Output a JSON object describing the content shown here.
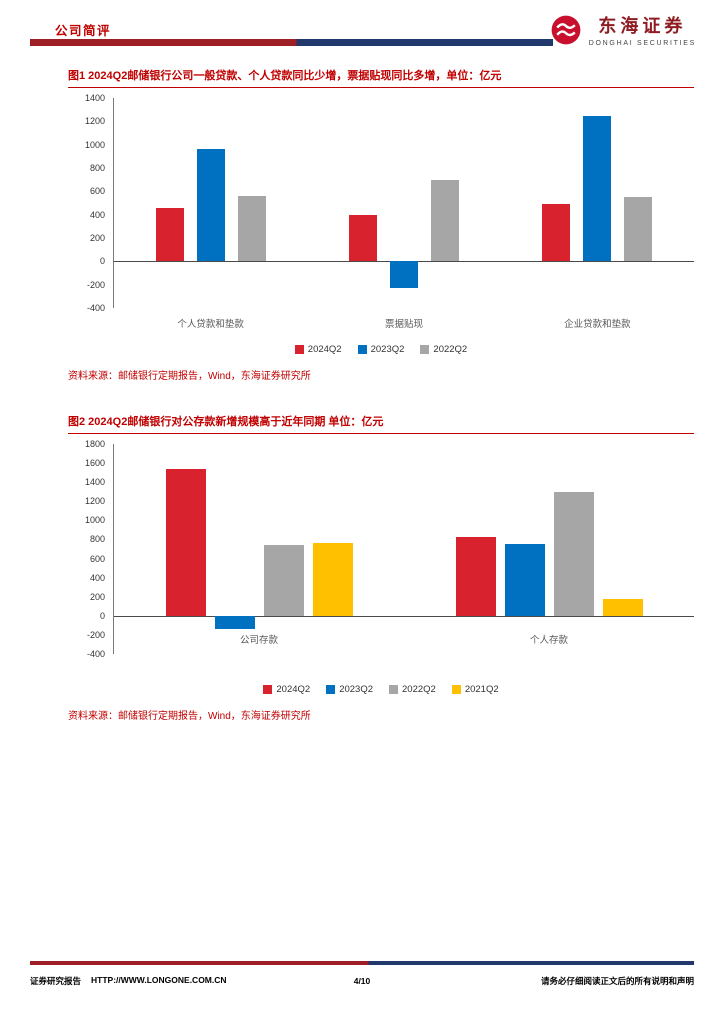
{
  "header": {
    "doc_type": "公司简评",
    "logo_cn": "东海证券",
    "logo_en": "DONGHAI SECURITIES"
  },
  "figures": [
    {
      "title": "图1  2024Q2邮储银行公司一般贷款、个人贷款同比少增，票据贴现同比多增，单位：亿元",
      "source": "资料来源：邮储银行定期报告，Wind，东海证券研究所"
    },
    {
      "title": "图2  2024Q2邮储银行对公存款新增规模高于近年同期 单位：亿元",
      "source": "资料来源：邮储银行定期报告，Wind，东海证券研究所"
    }
  ],
  "chart_data": [
    {
      "type": "bar",
      "title": "2024Q2邮储银行公司一般贷款、个人贷款同比少增，票据贴现同比多增",
      "unit": "亿元",
      "categories": [
        "个人贷款和垫款",
        "票据贴现",
        "企业贷款和垫款"
      ],
      "series": [
        {
          "name": "2024Q2",
          "color": "#D8232E",
          "values": [
            460,
            400,
            490
          ]
        },
        {
          "name": "2023Q2",
          "color": "#0070C0",
          "values": [
            960,
            -230,
            1250
          ]
        },
        {
          "name": "2022Q2",
          "color": "#A6A6A6",
          "values": [
            560,
            700,
            550
          ]
        }
      ],
      "ylim": [
        -400,
        1400
      ],
      "ytick_step": 200,
      "grid": false,
      "legend_position": "bottom"
    },
    {
      "type": "bar",
      "title": "2024Q2邮储银行对公存款新增规模高于近年同期",
      "unit": "亿元",
      "categories": [
        "公司存款",
        "个人存款"
      ],
      "series": [
        {
          "name": "2024Q2",
          "color": "#D8232E",
          "values": [
            1540,
            830
          ]
        },
        {
          "name": "2023Q2",
          "color": "#0070C0",
          "values": [
            -140,
            750
          ]
        },
        {
          "name": "2022Q2",
          "color": "#A6A6A6",
          "values": [
            740,
            1300
          ]
        },
        {
          "name": "2021Q2",
          "color": "#FFC000",
          "values": [
            760,
            180
          ]
        }
      ],
      "ylim": [
        -400,
        1800
      ],
      "ytick_step": 200,
      "grid": false,
      "legend_position": "bottom"
    }
  ],
  "footer": {
    "report_type": "证券研究报告",
    "url": "HTTP://WWW.LONGONE.COM.CN",
    "page": "4/10",
    "disclaimer": "请务必仔细阅读正文后的所有说明和声明"
  },
  "colors": {
    "accent_red": "#C00000",
    "rule_red": "#9E1E25",
    "rule_navy": "#20386B",
    "series_red": "#D8232E",
    "series_blue": "#0070C0",
    "series_gray": "#A6A6A6",
    "series_yellow": "#FFC000"
  }
}
